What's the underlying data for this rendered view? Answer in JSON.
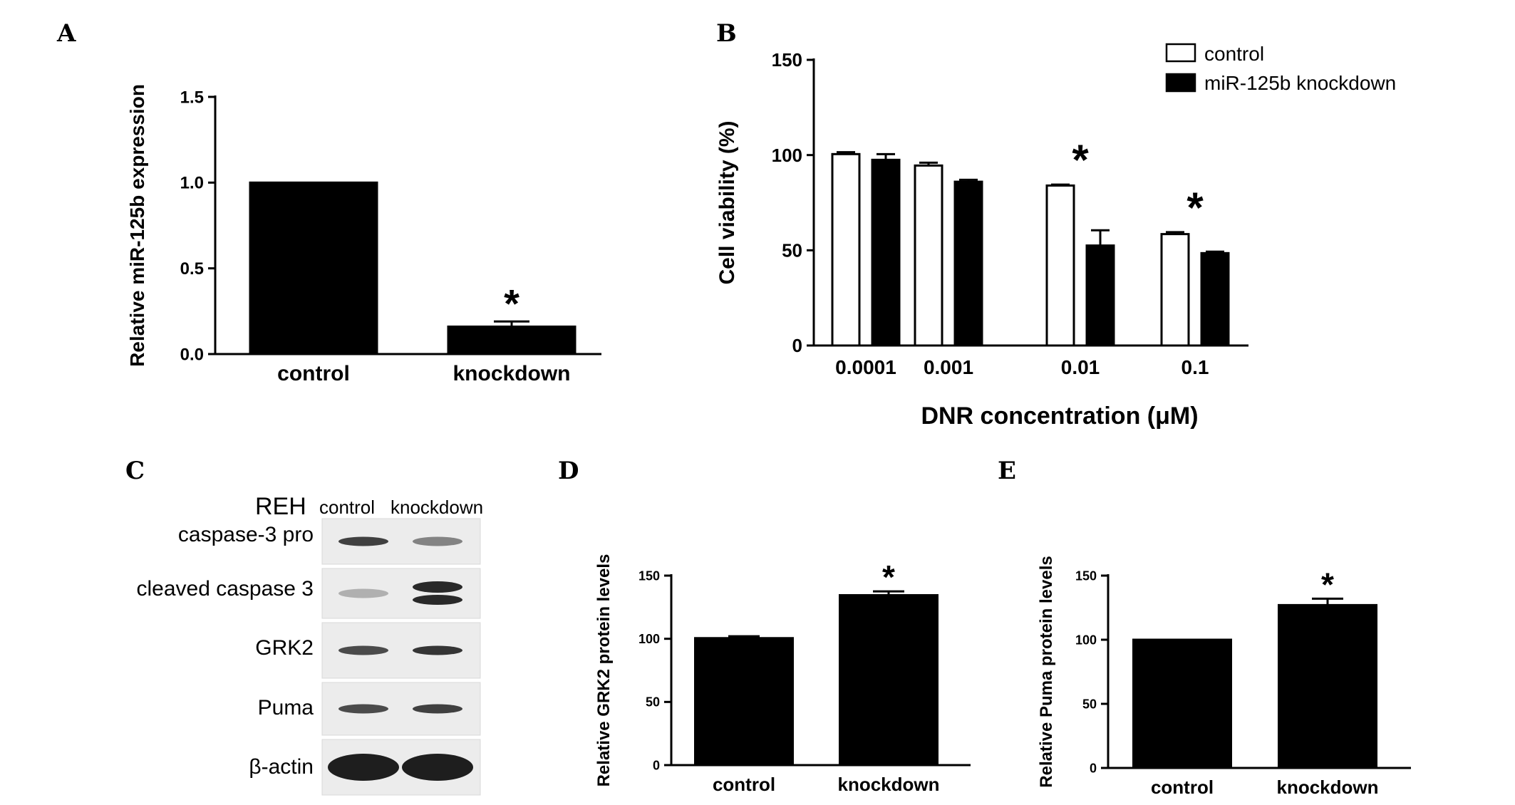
{
  "panels": {
    "A": "A",
    "B": "B",
    "C": "C",
    "D": "D",
    "E": "E"
  },
  "chart_data": [
    {
      "panel": "A",
      "type": "bar",
      "categories": [
        "control",
        "knockdown"
      ],
      "values": [
        1.0,
        0.16
      ],
      "errors": [
        0.0,
        0.03
      ],
      "ylabel": "Relative miR-125b expression",
      "ylim": [
        0,
        1.5
      ],
      "yticks": [
        "0.0",
        "0.5",
        "1.0",
        "1.5"
      ],
      "annotations": [
        "",
        "*"
      ]
    },
    {
      "panel": "B",
      "type": "bar",
      "categories": [
        "0.0001",
        "0.001",
        "0.01",
        "0.1"
      ],
      "series": [
        {
          "name": "control",
          "values": [
            100.5,
            94.5,
            84,
            58.5
          ],
          "errors": [
            1,
            1.5,
            0.5,
            1
          ]
        },
        {
          "name": "miR-125b knockdown",
          "values": [
            97.5,
            86,
            52.5,
            48.5
          ],
          "errors": [
            3,
            1,
            8,
            0.8
          ]
        }
      ],
      "series_colors": [
        "#ffffff",
        "#000000"
      ],
      "xlabel": "DNR concentration (μM)",
      "ylabel": "Cell viability (%)",
      "ylim": [
        0,
        150
      ],
      "yticks": [
        "0",
        "50",
        "100",
        "150"
      ],
      "annotations": [
        "",
        "",
        "*",
        "*"
      ],
      "legend_position": "top-right"
    },
    {
      "panel": "D",
      "type": "bar",
      "categories": [
        "control",
        "knockdown"
      ],
      "values": [
        100.5,
        134.5
      ],
      "errors": [
        1.5,
        3
      ],
      "ylabel": "Relative GRK2 protein levels",
      "ylim": [
        0,
        150
      ],
      "yticks": [
        "0",
        "50",
        "100",
        "150"
      ],
      "annotations": [
        "",
        "*"
      ]
    },
    {
      "panel": "E",
      "type": "bar",
      "categories": [
        "control",
        "knockdown"
      ],
      "values": [
        100,
        127
      ],
      "errors": [
        0,
        5
      ],
      "ylabel": "Relative Puma protein levels",
      "ylim": [
        0,
        150
      ],
      "yticks": [
        "0",
        "50",
        "100",
        "150"
      ],
      "annotations": [
        "",
        "*"
      ]
    }
  ],
  "blot": {
    "cell_line": "REH",
    "lanes": [
      "control",
      "knockdown"
    ],
    "rows": [
      {
        "label": "caspase-3 pro",
        "intensity": [
          0.85,
          0.55
        ],
        "double_band": false
      },
      {
        "label": "cleaved caspase 3",
        "intensity": [
          0.35,
          0.95
        ],
        "double_band": true
      },
      {
        "label": "GRK2",
        "intensity": [
          0.8,
          0.9
        ],
        "double_band": false
      },
      {
        "label": "Puma",
        "intensity": [
          0.8,
          0.85
        ],
        "double_band": false
      },
      {
        "label": "β-actin",
        "intensity": [
          1.0,
          1.0
        ],
        "double_band": false
      }
    ]
  }
}
